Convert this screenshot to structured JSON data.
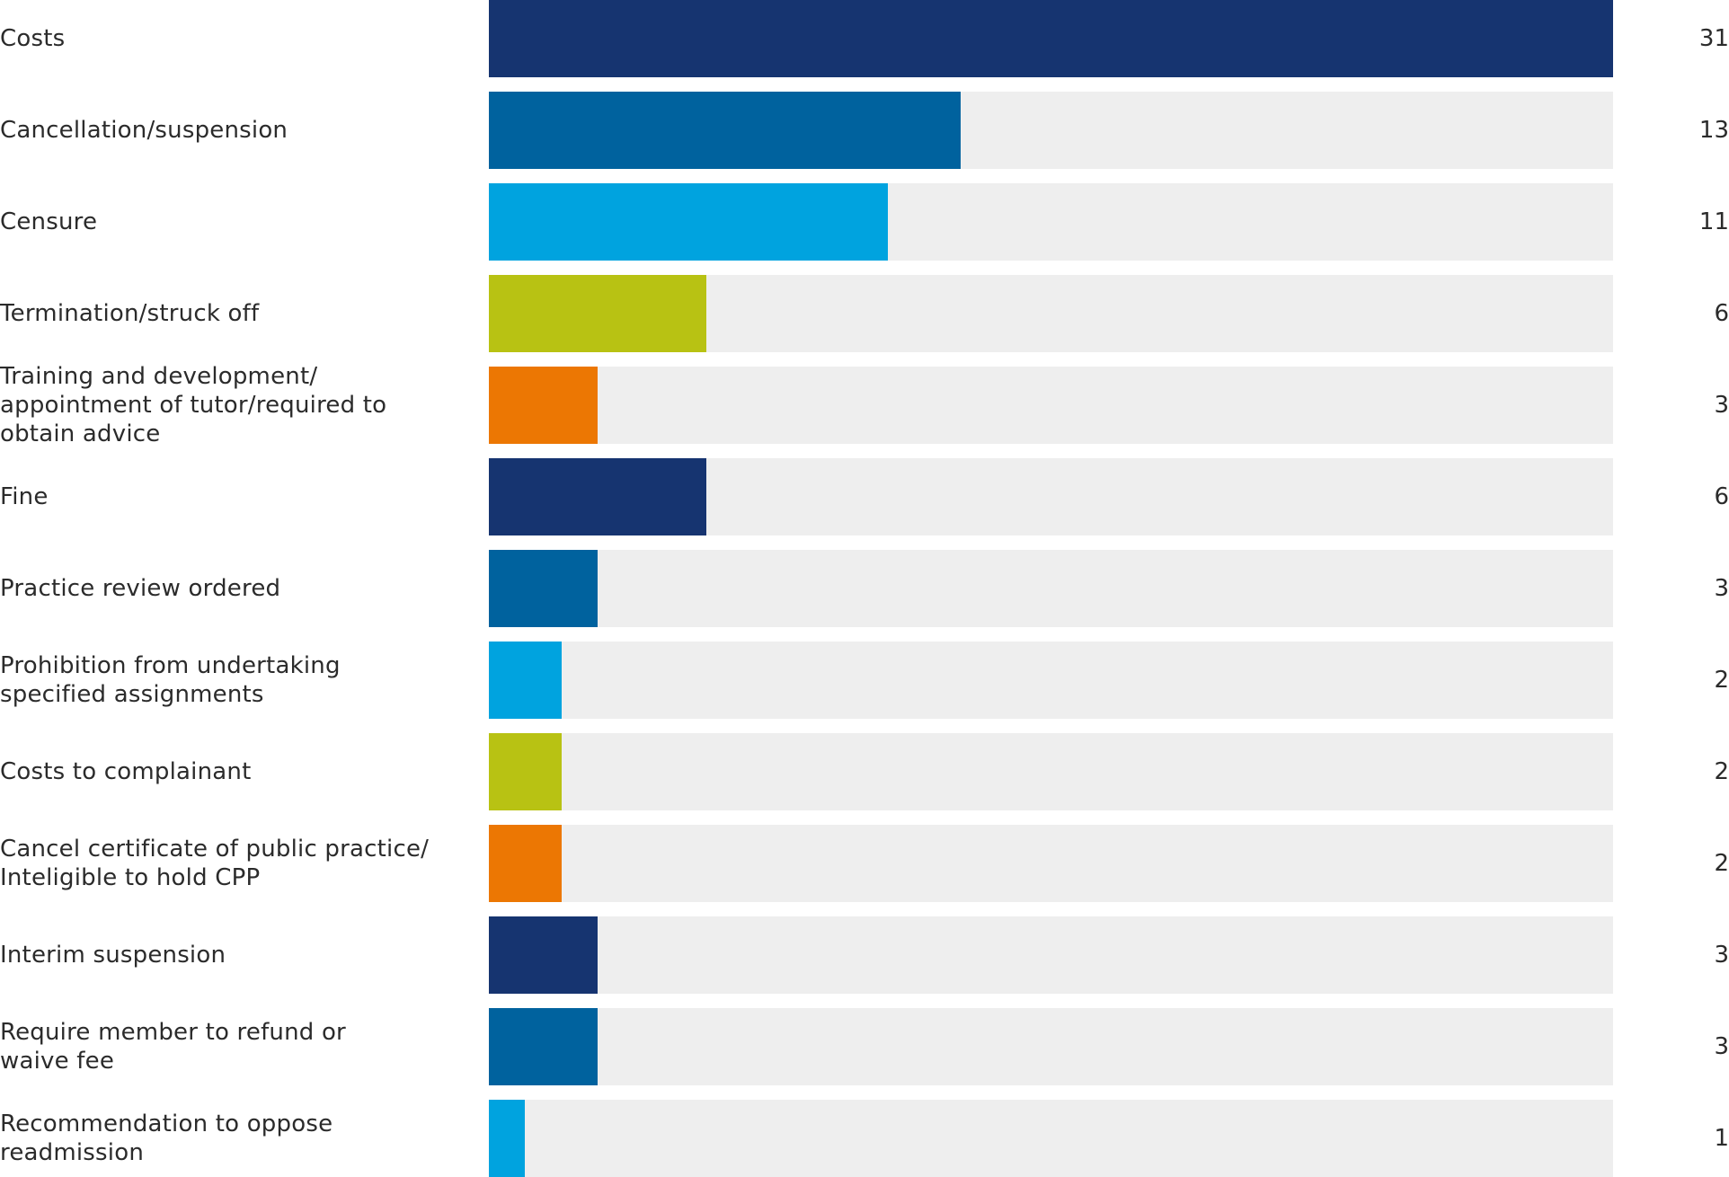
{
  "chart_data": {
    "type": "bar",
    "orientation": "horizontal",
    "xlim": [
      0,
      31
    ],
    "grid": false,
    "categories": [
      "Costs",
      "Cancellation/suspension",
      "Censure",
      "Termination/struck off",
      "Training and development/\nappointment of tutor/required to\nobtain advice",
      "Fine",
      "Practice review ordered",
      "Prohibition from undertaking\nspecified assignments",
      "Costs to complainant",
      "Cancel certificate of public practice/\nInteligible to hold CPP",
      "Interim suspension",
      "Require member to refund or\nwaive fee",
      "Recommendation to oppose\nreadmission"
    ],
    "values": [
      31,
      13,
      11,
      6,
      3,
      6,
      3,
      2,
      2,
      2,
      3,
      3,
      1
    ],
    "value_labels": [
      "31",
      "13",
      "11",
      "6",
      "3",
      "6",
      "3",
      "2",
      "2",
      "2",
      "3",
      "3",
      "1"
    ],
    "bar_colors": [
      "#163470",
      "#00629e",
      "#00a3df",
      "#b8c213",
      "#ec7703",
      "#163470",
      "#00629e",
      "#00a3df",
      "#b8c213",
      "#ec7703",
      "#163470",
      "#00629e",
      "#00a3df"
    ],
    "track_color": "#eeeeee"
  }
}
